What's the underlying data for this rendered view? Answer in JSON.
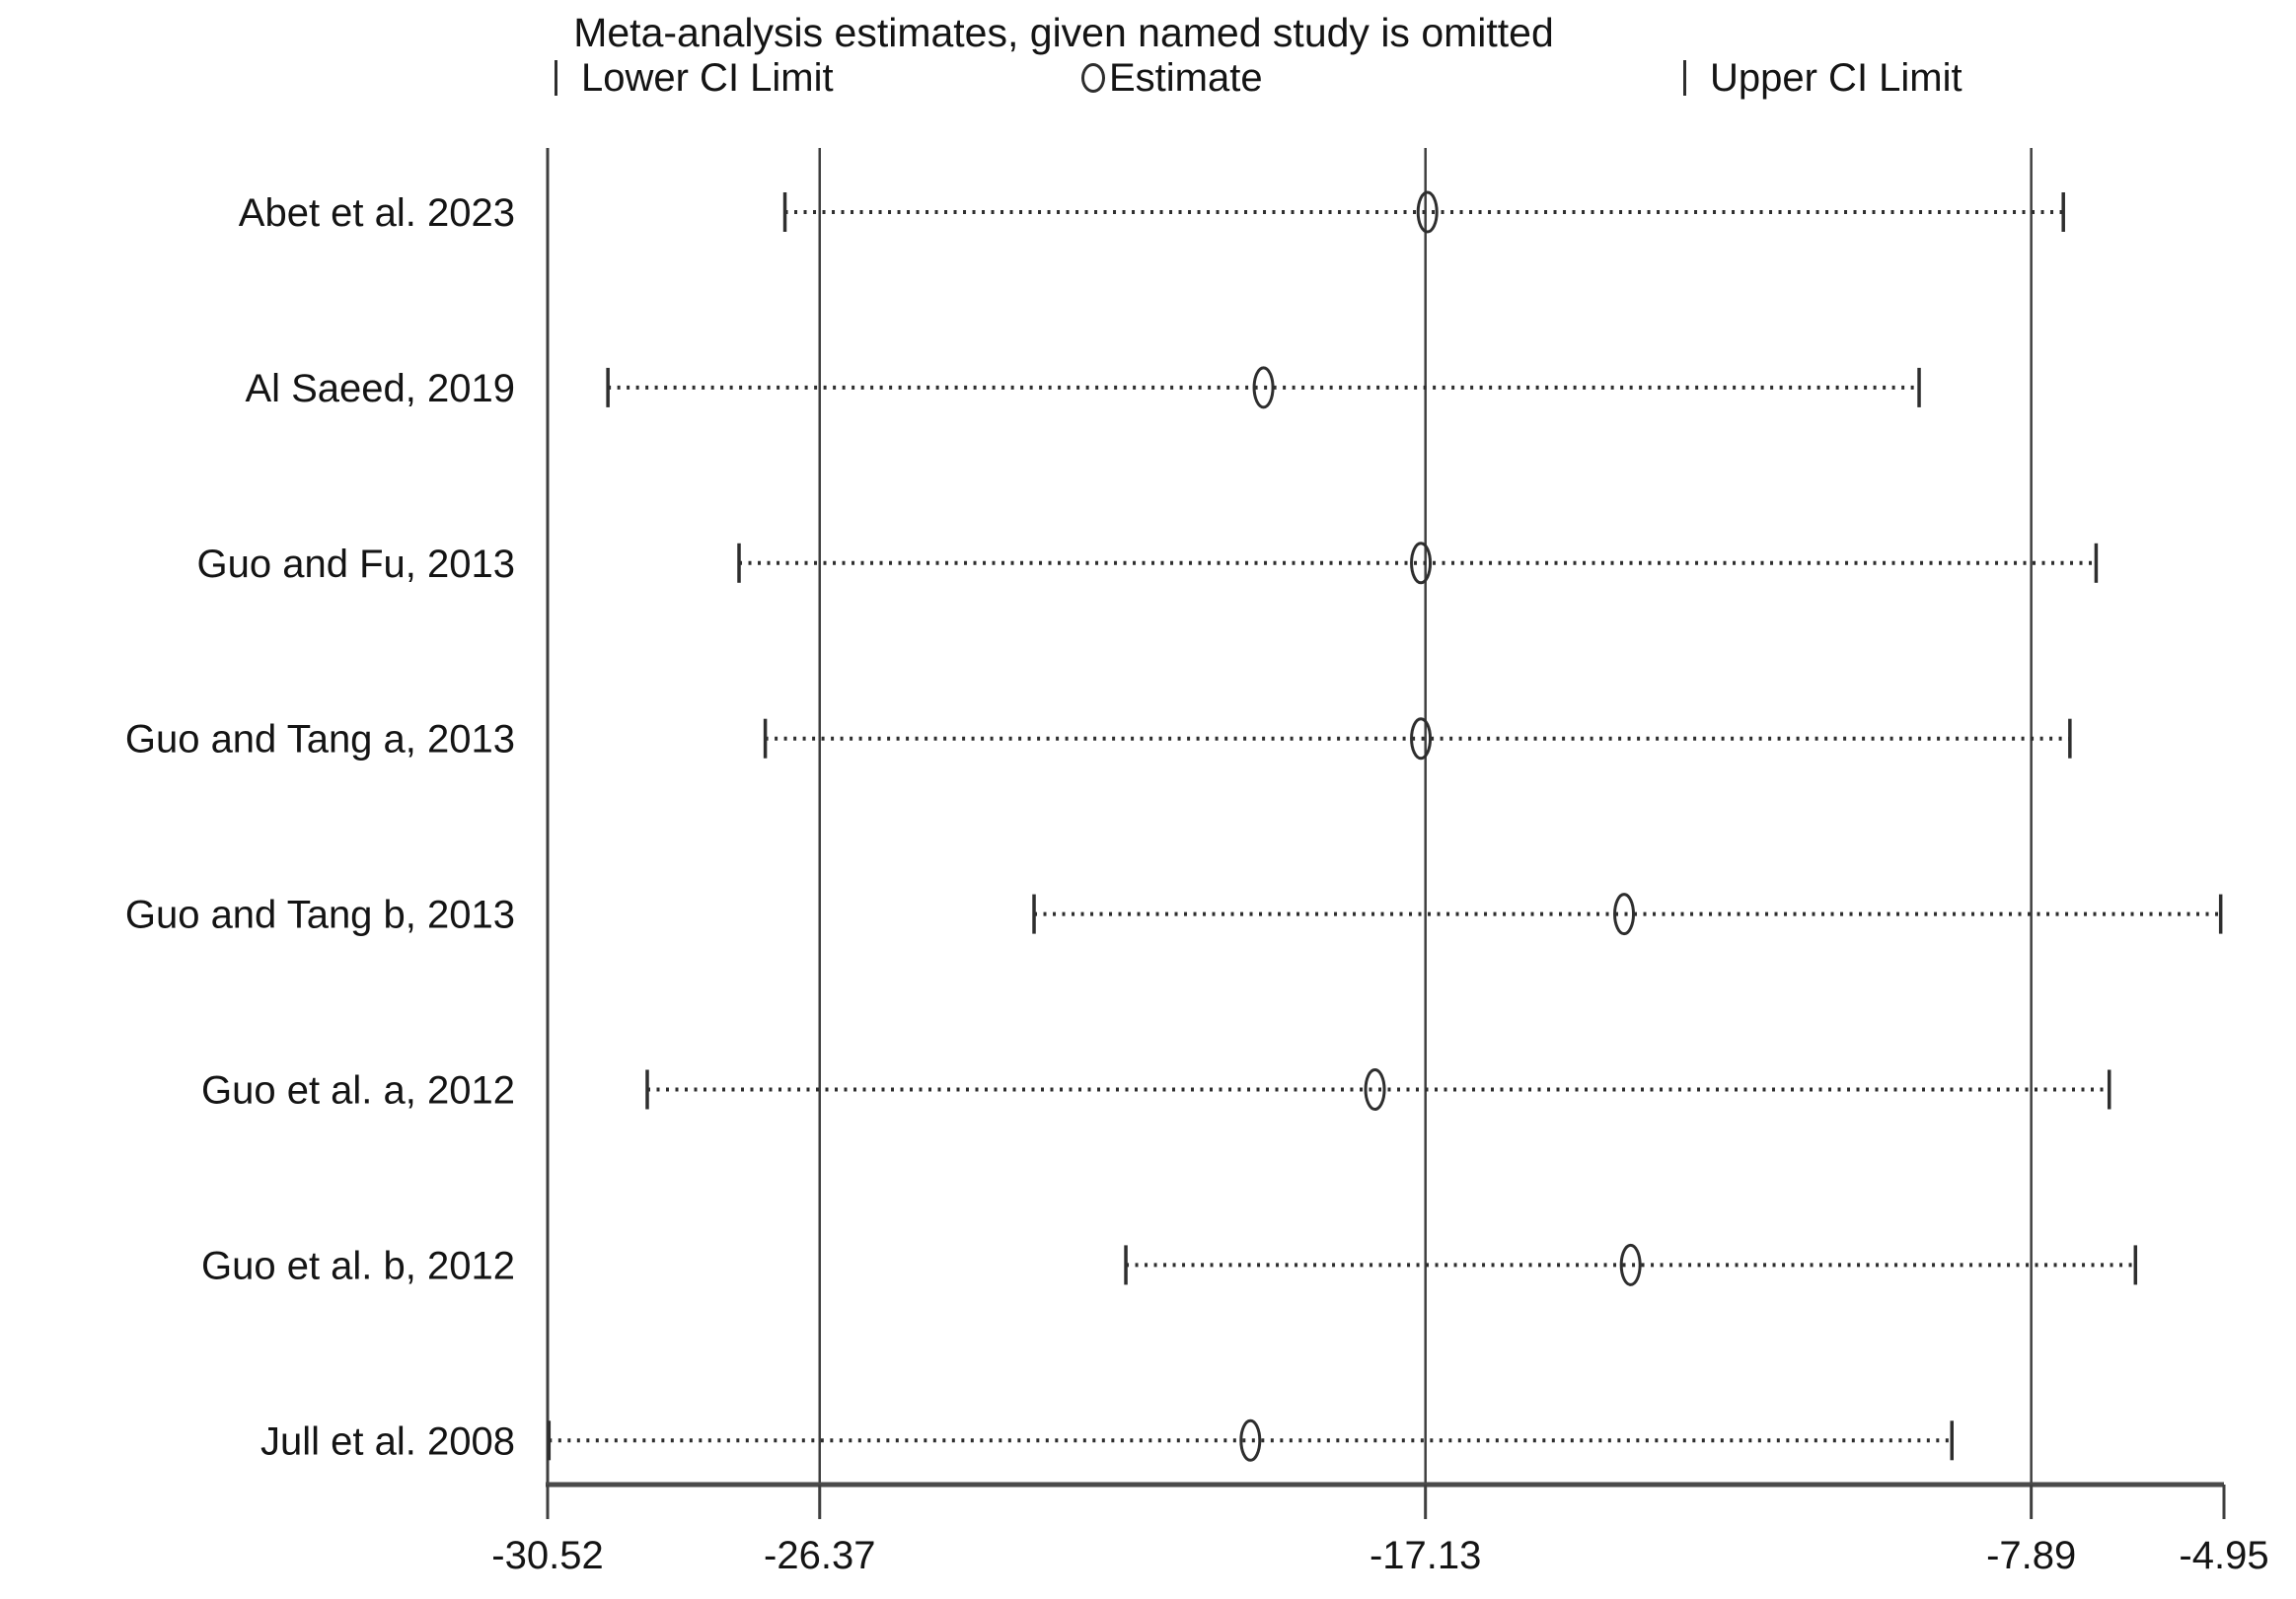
{
  "title": "Meta-analysis estimates, given named study is omitted",
  "legend": {
    "lower": "Lower CI Limit",
    "estimate": "Estimate",
    "upper": "Upper CI Limit"
  },
  "chart_data": {
    "type": "scatter",
    "subtype": "leave-one-out-forest",
    "title": "Meta-analysis estimates, given named study is omitted",
    "xlim": [
      -30.52,
      -4.95
    ],
    "x_ticks": [
      -30.52,
      -26.37,
      -17.13,
      -7.89,
      -4.95
    ],
    "x_tick_labels": [
      "-30.52",
      "-26.37",
      "-17.13",
      "-7.89",
      "-4.95"
    ],
    "ref_lines": [
      -30.52,
      -26.37,
      -17.13,
      -7.89
    ],
    "legend_entries": [
      "Lower CI Limit",
      "Estimate",
      "Upper CI Limit"
    ],
    "grid": false,
    "legend_position": "top",
    "studies": [
      {
        "label": "Abet et al. 2023",
        "lower": -26.9,
        "estimate": -17.1,
        "upper": -7.4
      },
      {
        "label": "Al Saeed, 2019",
        "lower": -29.6,
        "estimate": -19.6,
        "upper": -9.6
      },
      {
        "label": "Guo and Fu, 2013",
        "lower": -27.6,
        "estimate": -17.2,
        "upper": -6.9
      },
      {
        "label": "Guo and Tang a, 2013",
        "lower": -27.2,
        "estimate": -17.2,
        "upper": -7.3
      },
      {
        "label": "Guo and Tang b, 2013",
        "lower": -23.1,
        "estimate": -14.1,
        "upper": -5.0
      },
      {
        "label": "Guo et al. a, 2012",
        "lower": -29.0,
        "estimate": -17.9,
        "upper": -6.7
      },
      {
        "label": "Guo et al. b, 2012",
        "lower": -21.7,
        "estimate": -14.0,
        "upper": -6.3
      },
      {
        "label": "Jull et al. 2008",
        "lower": -30.5,
        "estimate": -19.8,
        "upper": -9.1
      }
    ]
  },
  "colors": {
    "text": "#141414",
    "marks": "#2e2e2e",
    "ref_line": "#3f3f3f",
    "axis": "#4a4a4a",
    "background": "#ffffff"
  }
}
